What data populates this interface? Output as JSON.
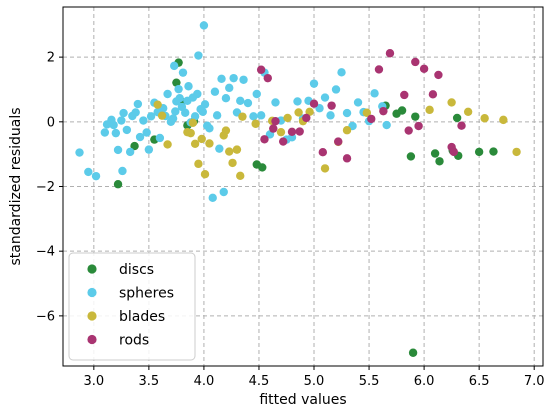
{
  "chart_data": {
    "type": "scatter",
    "title": "",
    "xlabel": "fitted values",
    "ylabel": "standardized residuals",
    "xlim": [
      2.72,
      7.08
    ],
    "ylim": [
      -7.55,
      3.55
    ],
    "xticks": [
      3.0,
      3.5,
      4.0,
      4.5,
      5.0,
      5.5,
      6.0,
      6.5,
      7.0
    ],
    "xtick_labels": [
      "3.0",
      "3.5",
      "4.0",
      "4.5",
      "5.0",
      "5.5",
      "6.0",
      "6.5",
      "7.0"
    ],
    "yticks": [
      -6,
      -4,
      -2,
      0,
      2
    ],
    "ytick_labels": [
      "−6",
      "−4",
      "−2",
      "0",
      "2"
    ],
    "grid": true,
    "legend_position": "lower-left",
    "series": [
      {
        "name": "discs",
        "color": "#2a8a3a",
        "points": [
          [
            3.22,
            -1.93
          ],
          [
            3.37,
            -0.75
          ],
          [
            3.55,
            -0.55
          ],
          [
            3.75,
            1.21
          ],
          [
            3.77,
            1.83
          ],
          [
            3.8,
            0.62
          ],
          [
            3.85,
            -0.11
          ],
          [
            3.91,
            0.02
          ],
          [
            4.48,
            -1.32
          ],
          [
            4.53,
            -1.41
          ],
          [
            5.65,
            0.5
          ],
          [
            5.75,
            0.25
          ],
          [
            5.8,
            0.35
          ],
          [
            5.88,
            -1.07
          ],
          [
            5.92,
            0.16
          ],
          [
            6.1,
            -0.98
          ],
          [
            6.14,
            -1.22
          ],
          [
            6.26,
            -0.89
          ],
          [
            6.3,
            0.12
          ],
          [
            6.31,
            -1.05
          ],
          [
            6.5,
            -0.93
          ],
          [
            6.63,
            -0.92
          ],
          [
            5.9,
            -7.14
          ]
        ]
      },
      {
        "name": "spheres",
        "color": "#5ccbe9",
        "points": [
          [
            2.87,
            -0.95
          ],
          [
            2.95,
            -1.55
          ],
          [
            3.02,
            -1.68
          ],
          [
            3.1,
            -0.33
          ],
          [
            3.12,
            -0.08
          ],
          [
            3.16,
            0.06
          ],
          [
            3.18,
            -0.1
          ],
          [
            3.2,
            -0.35
          ],
          [
            3.22,
            -0.87
          ],
          [
            3.25,
            0.04
          ],
          [
            3.26,
            -1.52
          ],
          [
            3.27,
            0.27
          ],
          [
            3.3,
            -0.25
          ],
          [
            3.33,
            -0.93
          ],
          [
            3.35,
            0.18
          ],
          [
            3.38,
            0.29
          ],
          [
            3.4,
            0.55
          ],
          [
            3.42,
            -0.47
          ],
          [
            3.45,
            0.04
          ],
          [
            3.48,
            -0.33
          ],
          [
            3.5,
            -0.86
          ],
          [
            3.52,
            0.17
          ],
          [
            3.55,
            0.59
          ],
          [
            3.58,
            0.3
          ],
          [
            3.6,
            -0.5
          ],
          [
            3.63,
            0.42
          ],
          [
            3.65,
            0.18
          ],
          [
            3.67,
            0.86
          ],
          [
            3.7,
            0.0
          ],
          [
            3.72,
            0.1
          ],
          [
            3.73,
            1.73
          ],
          [
            3.74,
            0.32
          ],
          [
            3.75,
            0.63
          ],
          [
            3.77,
            1.01
          ],
          [
            3.78,
            0.73
          ],
          [
            3.8,
            0.46
          ],
          [
            3.81,
            1.52
          ],
          [
            3.83,
            0.28
          ],
          [
            3.85,
            0.65
          ],
          [
            3.86,
            1.1
          ],
          [
            3.88,
            -0.02
          ],
          [
            3.9,
            0.75
          ],
          [
            3.92,
            0.17
          ],
          [
            3.94,
            0.86
          ],
          [
            3.95,
            2.05
          ],
          [
            3.97,
            0.39
          ],
          [
            3.99,
            0.31
          ],
          [
            4.0,
            2.98
          ],
          [
            4.01,
            0.54
          ],
          [
            4.03,
            -0.12
          ],
          [
            4.05,
            -0.2
          ],
          [
            4.08,
            -2.35
          ],
          [
            4.1,
            0.93
          ],
          [
            4.12,
            0.2
          ],
          [
            4.14,
            -0.83
          ],
          [
            4.16,
            1.33
          ],
          [
            4.18,
            -2.17
          ],
          [
            4.2,
            0.73
          ],
          [
            4.23,
            1.05
          ],
          [
            4.27,
            1.35
          ],
          [
            4.3,
            0.29
          ],
          [
            4.33,
            0.65
          ],
          [
            4.36,
            1.3
          ],
          [
            4.4,
            0.58
          ],
          [
            4.45,
            0.17
          ],
          [
            4.48,
            0.86
          ],
          [
            4.52,
            0.2
          ],
          [
            4.55,
            1.52
          ],
          [
            4.6,
            -0.39
          ],
          [
            4.65,
            0.6
          ],
          [
            4.7,
            0.04
          ],
          [
            4.75,
            -0.55
          ],
          [
            4.8,
            -0.48
          ],
          [
            4.85,
            0.63
          ],
          [
            4.9,
            0.1
          ],
          [
            4.95,
            0.65
          ],
          [
            5.0,
            1.18
          ],
          [
            5.05,
            0.42
          ],
          [
            5.1,
            0.75
          ],
          [
            5.15,
            0.2
          ],
          [
            5.2,
            1.0
          ],
          [
            5.25,
            1.53
          ],
          [
            5.3,
            0.27
          ],
          [
            5.35,
            -0.13
          ],
          [
            5.4,
            0.6
          ],
          [
            5.45,
            0.3
          ],
          [
            5.5,
            0.02
          ],
          [
            5.55,
            0.88
          ],
          [
            5.62,
            0.48
          ],
          [
            5.66,
            -0.1
          ]
        ]
      },
      {
        "name": "blades",
        "color": "#c9b83b",
        "points": [
          [
            3.58,
            0.53
          ],
          [
            3.62,
            0.19
          ],
          [
            3.67,
            -0.7
          ],
          [
            3.85,
            -0.32
          ],
          [
            3.88,
            -0.35
          ],
          [
            3.9,
            -0.03
          ],
          [
            3.92,
            -0.68
          ],
          [
            3.95,
            -1.3
          ],
          [
            3.98,
            -0.53
          ],
          [
            4.01,
            -1.62
          ],
          [
            4.05,
            -0.67
          ],
          [
            4.18,
            -0.42
          ],
          [
            4.2,
            -0.27
          ],
          [
            4.23,
            -0.92
          ],
          [
            4.26,
            -1.27
          ],
          [
            4.3,
            -0.86
          ],
          [
            4.33,
            -1.67
          ],
          [
            4.35,
            0.16
          ],
          [
            4.47,
            -0.06
          ],
          [
            4.62,
            0.03
          ],
          [
            4.7,
            -0.32
          ],
          [
            4.76,
            0.12
          ],
          [
            4.86,
            0.29
          ],
          [
            4.9,
            0.02
          ],
          [
            4.96,
            0.31
          ],
          [
            5.1,
            -1.44
          ],
          [
            5.22,
            -0.62
          ],
          [
            5.3,
            -0.26
          ],
          [
            5.48,
            0.28
          ],
          [
            6.05,
            0.37
          ],
          [
            6.25,
            0.6
          ],
          [
            6.4,
            0.31
          ],
          [
            6.55,
            0.11
          ],
          [
            6.72,
            0.06
          ],
          [
            6.84,
            -0.93
          ]
        ]
      },
      {
        "name": "rods",
        "color": "#a93471",
        "points": [
          [
            4.52,
            1.61
          ],
          [
            4.55,
            -0.54
          ],
          [
            4.58,
            1.35
          ],
          [
            4.63,
            -0.21
          ],
          [
            4.65,
            0.02
          ],
          [
            4.72,
            -0.61
          ],
          [
            4.8,
            -0.31
          ],
          [
            4.87,
            -0.3
          ],
          [
            4.93,
            0.12
          ],
          [
            5.0,
            0.56
          ],
          [
            5.08,
            -0.94
          ],
          [
            5.16,
            0.5
          ],
          [
            5.22,
            -0.61
          ],
          [
            5.3,
            -1.13
          ],
          [
            5.52,
            0.09
          ],
          [
            5.59,
            1.62
          ],
          [
            5.63,
            0.33
          ],
          [
            5.69,
            2.12
          ],
          [
            5.82,
            0.83
          ],
          [
            5.86,
            -0.27
          ],
          [
            5.92,
            1.85
          ],
          [
            5.95,
            -0.13
          ],
          [
            6.0,
            1.64
          ],
          [
            6.08,
            0.85
          ],
          [
            6.13,
            1.45
          ],
          [
            6.25,
            -0.78
          ],
          [
            6.27,
            -0.93
          ],
          [
            6.34,
            -0.12
          ]
        ]
      }
    ]
  }
}
